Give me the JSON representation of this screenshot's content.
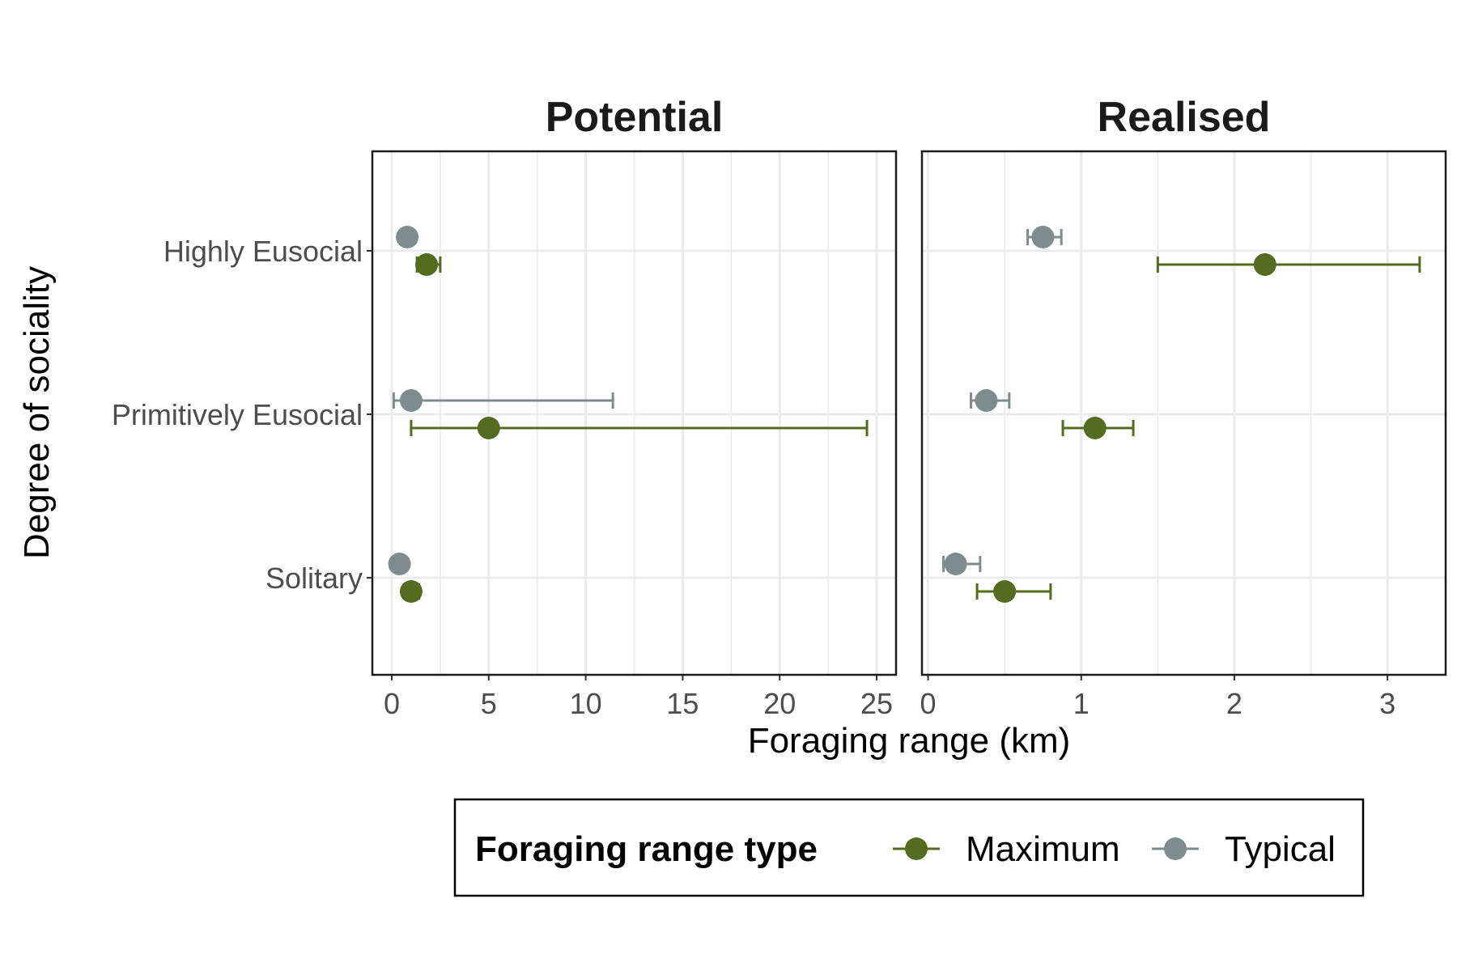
{
  "chart_data": {
    "type": "scatter",
    "ylabel": "Degree of sociality",
    "xlabel": "Foraging range (km)",
    "categories": [
      "Highly Eusocial",
      "Primitively Eusocial",
      "Solitary"
    ],
    "legend": {
      "title": "Foraging range type",
      "position": "bottom",
      "entries": [
        {
          "name": "Maximum",
          "color": "#556b1f"
        },
        {
          "name": "Typical",
          "color": "#7f8c8d"
        }
      ]
    },
    "grid": true,
    "panels": [
      {
        "title": "Potential",
        "xlim": [
          -1,
          26
        ],
        "xticks": [
          0,
          5,
          10,
          15,
          20,
          25
        ],
        "series": [
          {
            "name": "Maximum",
            "points": [
              {
                "category": "Highly Eusocial",
                "x": 1.8,
                "xmin": 1.3,
                "xmax": 2.5
              },
              {
                "category": "Primitively Eusocial",
                "x": 5.0,
                "xmin": 1.0,
                "xmax": 24.5
              },
              {
                "category": "Solitary",
                "x": 1.0,
                "xmin": 0.7,
                "xmax": 1.4
              }
            ]
          },
          {
            "name": "Typical",
            "points": [
              {
                "category": "Highly Eusocial",
                "x": 0.8,
                "xmin": 0.8,
                "xmax": 0.8
              },
              {
                "category": "Primitively Eusocial",
                "x": 1.0,
                "xmin": 0.1,
                "xmax": 11.4
              },
              {
                "category": "Solitary",
                "x": 0.4,
                "xmin": 0.4,
                "xmax": 0.4
              }
            ]
          }
        ]
      },
      {
        "title": "Realised",
        "xlim": [
          -0.04,
          3.38
        ],
        "xticks": [
          0,
          1,
          2,
          3
        ],
        "series": [
          {
            "name": "Maximum",
            "points": [
              {
                "category": "Highly Eusocial",
                "x": 2.2,
                "xmin": 1.5,
                "xmax": 3.21
              },
              {
                "category": "Primitively Eusocial",
                "x": 1.09,
                "xmin": 0.88,
                "xmax": 1.34
              },
              {
                "category": "Solitary",
                "x": 0.5,
                "xmin": 0.32,
                "xmax": 0.8
              }
            ]
          },
          {
            "name": "Typical",
            "points": [
              {
                "category": "Highly Eusocial",
                "x": 0.75,
                "xmin": 0.65,
                "xmax": 0.87
              },
              {
                "category": "Primitively Eusocial",
                "x": 0.38,
                "xmin": 0.28,
                "xmax": 0.53
              },
              {
                "category": "Solitary",
                "x": 0.18,
                "xmin": 0.1,
                "xmax": 0.34
              }
            ]
          }
        ]
      }
    ]
  }
}
